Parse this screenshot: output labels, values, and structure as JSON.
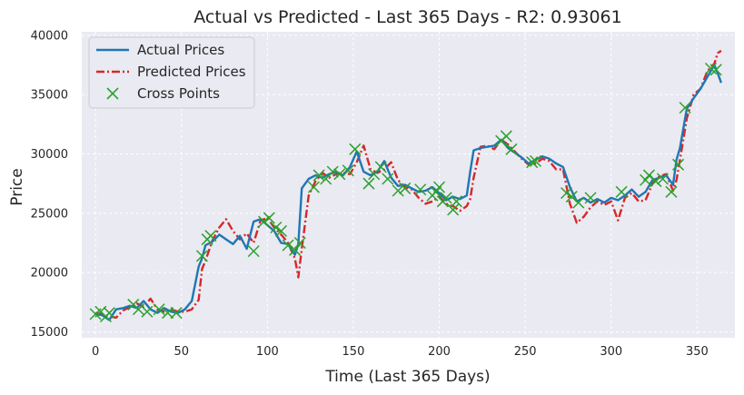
{
  "chart_data": {
    "type": "line",
    "title": "Actual vs Predicted - Last 365 Days - R2: 0.93061",
    "xlabel": "Time (Last 365 Days)",
    "ylabel": "Price",
    "xlim": [
      -8,
      372
    ],
    "ylim": [
      14500,
      40300
    ],
    "xticks": [
      0,
      50,
      100,
      150,
      200,
      250,
      300,
      350
    ],
    "yticks": [
      15000,
      20000,
      25000,
      30000,
      35000,
      40000
    ],
    "grid": true,
    "legend_position": "top-left",
    "colors": {
      "actual": "#1f77b4",
      "predicted": "#d62728",
      "cross": "#2ca02c",
      "background": "#eaeaf2",
      "grid": "#ffffff"
    },
    "series": [
      {
        "name": "Actual Prices",
        "style": "solid",
        "x": [
          0,
          4,
          8,
          12,
          16,
          20,
          24,
          28,
          32,
          36,
          40,
          44,
          48,
          52,
          56,
          60,
          62,
          64,
          68,
          72,
          76,
          80,
          84,
          88,
          92,
          96,
          100,
          104,
          108,
          112,
          116,
          118,
          120,
          124,
          128,
          132,
          136,
          140,
          144,
          148,
          152,
          156,
          160,
          164,
          168,
          172,
          176,
          180,
          184,
          188,
          192,
          196,
          200,
          204,
          208,
          212,
          216,
          218,
          220,
          224,
          228,
          232,
          236,
          240,
          244,
          248,
          252,
          256,
          260,
          264,
          268,
          272,
          276,
          280,
          284,
          288,
          292,
          296,
          300,
          304,
          308,
          312,
          316,
          320,
          324,
          328,
          332,
          336,
          338,
          340,
          344,
          348,
          352,
          356,
          360,
          362,
          364
        ],
        "values": [
          16500,
          16400,
          16000,
          16900,
          17000,
          17200,
          17000,
          17600,
          16900,
          16600,
          17000,
          16700,
          16600,
          16900,
          17600,
          20500,
          21200,
          22300,
          22600,
          23200,
          22800,
          22400,
          23100,
          22000,
          24300,
          24500,
          24000,
          23500,
          22500,
          22400,
          21500,
          22400,
          27100,
          27900,
          28200,
          28000,
          28300,
          28500,
          28200,
          28900,
          30200,
          28500,
          28200,
          28500,
          29400,
          28000,
          27300,
          27400,
          27100,
          26800,
          26900,
          27200,
          26700,
          26100,
          26400,
          26200,
          26500,
          28500,
          30300,
          30500,
          30600,
          30700,
          31200,
          30500,
          30100,
          29700,
          29200,
          29500,
          29800,
          29600,
          29200,
          28900,
          27200,
          26000,
          26300,
          25900,
          26200,
          25900,
          26300,
          26100,
          26500,
          27000,
          26400,
          26800,
          27800,
          28000,
          28200,
          27400,
          29500,
          30500,
          33800,
          34700,
          35500,
          36500,
          37500,
          36800,
          36000
        ]
      },
      {
        "name": "Predicted Prices",
        "style": "dashdot",
        "x": [
          0,
          4,
          8,
          12,
          16,
          20,
          24,
          28,
          32,
          36,
          40,
          44,
          48,
          52,
          56,
          60,
          62,
          64,
          68,
          72,
          76,
          80,
          84,
          88,
          92,
          96,
          100,
          104,
          108,
          112,
          116,
          118,
          120,
          124,
          128,
          132,
          136,
          140,
          144,
          148,
          152,
          156,
          160,
          164,
          168,
          172,
          176,
          180,
          184,
          188,
          192,
          196,
          200,
          204,
          208,
          212,
          216,
          218,
          220,
          224,
          228,
          232,
          236,
          240,
          244,
          248,
          252,
          256,
          260,
          264,
          268,
          272,
          276,
          280,
          284,
          288,
          292,
          296,
          300,
          304,
          308,
          312,
          316,
          320,
          324,
          328,
          332,
          336,
          338,
          340,
          344,
          348,
          352,
          356,
          360,
          362,
          364
        ],
        "values": [
          16600,
          16500,
          16300,
          16200,
          16800,
          17100,
          17400,
          17100,
          17800,
          16900,
          16700,
          16900,
          16700,
          16700,
          16900,
          17700,
          20300,
          21000,
          22700,
          23800,
          24500,
          23500,
          22800,
          23300,
          22500,
          24400,
          24600,
          23800,
          23200,
          22500,
          21200,
          19600,
          22000,
          26500,
          27700,
          28400,
          28000,
          28300,
          28400,
          28300,
          29300,
          30700,
          28700,
          28400,
          28700,
          29300,
          27800,
          27200,
          27000,
          26300,
          25800,
          26000,
          26400,
          25800,
          25600,
          25200,
          25600,
          26200,
          28000,
          30600,
          30700,
          30400,
          31200,
          30800,
          30200,
          29600,
          29100,
          29200,
          29600,
          29400,
          28700,
          28700,
          25800,
          24200,
          24700,
          25500,
          26000,
          25700,
          26000,
          24400,
          26300,
          26700,
          26000,
          26100,
          27500,
          28100,
          28300,
          26900,
          27800,
          29500,
          33000,
          35000,
          35500,
          37000,
          37600,
          38500,
          38700
        ]
      },
      {
        "name": "Cross Points",
        "style": "markers-x",
        "x": [
          0,
          3,
          6,
          8,
          22,
          25,
          30,
          37,
          42,
          47,
          62,
          65,
          67,
          92,
          98,
          101,
          105,
          108,
          112,
          116,
          119,
          127,
          130,
          134,
          138,
          142,
          147,
          151,
          159,
          162,
          166,
          170,
          176,
          180,
          189,
          196,
          198,
          200,
          202,
          204,
          208,
          210,
          236,
          239,
          242,
          254,
          256,
          274,
          277,
          281,
          288,
          306,
          320,
          322,
          326,
          330,
          335,
          339,
          343,
          358,
          361
        ],
        "values": [
          16500,
          16700,
          16300,
          16600,
          17300,
          16900,
          16700,
          16900,
          16600,
          16600,
          21400,
          22800,
          23100,
          21800,
          24300,
          24600,
          23800,
          23500,
          22300,
          21900,
          22500,
          27200,
          28200,
          27900,
          28500,
          28300,
          28600,
          30400,
          27500,
          28300,
          28900,
          27900,
          26900,
          27100,
          27000,
          26500,
          26800,
          27200,
          26000,
          26300,
          25300,
          26000,
          31100,
          31500,
          30400,
          29300,
          29400,
          26700,
          26400,
          25900,
          26300,
          26800,
          27800,
          28200,
          27700,
          27900,
          26800,
          29100,
          33900,
          37200,
          37100
        ]
      }
    ]
  }
}
